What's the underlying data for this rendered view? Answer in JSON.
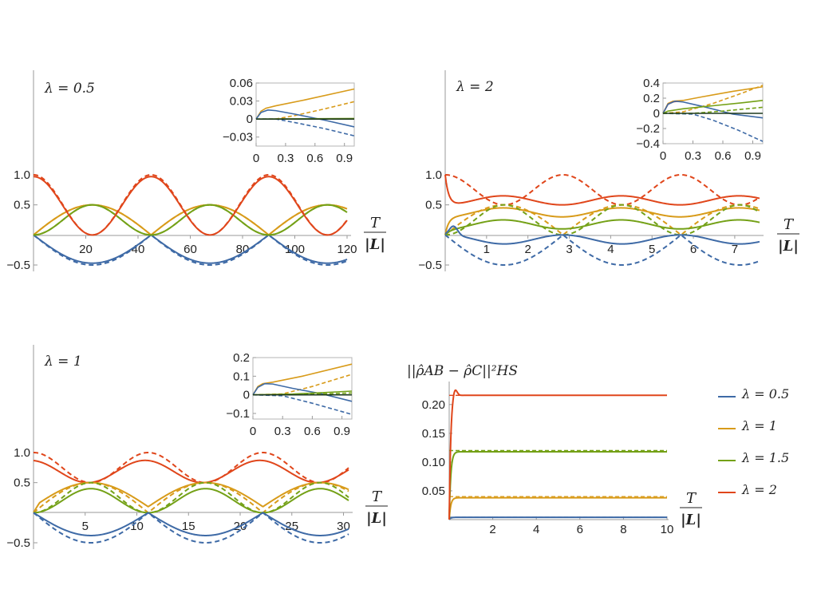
{
  "colors": {
    "blue": "#3e6aa6",
    "yellow": "#d89b1a",
    "green": "#74a117",
    "red": "#e0461b",
    "axis": "#9a9a9a",
    "inset_zero_line": "#1f3a1f"
  },
  "legend": {
    "items": [
      {
        "label": "λ = 0.5",
        "color": "#3e6aa6"
      },
      {
        "label": "λ = 1",
        "color": "#d89b1a"
      },
      {
        "label": "λ = 1.5",
        "color": "#74a117"
      },
      {
        "label": "λ = 2",
        "color": "#e0461b"
      }
    ]
  },
  "x_axis_label": {
    "numerator": "T",
    "denominator": "|L|"
  },
  "chart_data": [
    {
      "type": "line",
      "title": "λ = 0.5",
      "xlim": [
        0,
        120
      ],
      "ylim": [
        -0.5,
        1.0
      ],
      "x_ticks": [
        20,
        40,
        60,
        80,
        100,
        120
      ],
      "y_ticks": [
        -0.5,
        0.5,
        1.0
      ],
      "y_tick_labels": [
        "−0.5",
        "0.5",
        "1.0"
      ],
      "x_label": "T/|L|",
      "series": [
        {
          "color": "blue",
          "style": "solid",
          "shape": "neg_hump",
          "period": 45,
          "amplitude": 0.47
        },
        {
          "color": "blue",
          "style": "dashed",
          "shape": "neg_hump",
          "period": 45,
          "amplitude": 0.5
        },
        {
          "color": "yellow",
          "style": "solid",
          "shape": "triangle_abs_sin",
          "period": 45,
          "amplitude": 0.5
        },
        {
          "color": "yellow",
          "style": "dashed",
          "shape": "triangle_abs_sin",
          "period": 45,
          "amplitude": 0.5
        },
        {
          "color": "green",
          "style": "solid",
          "shape": "sin_squared_half",
          "period": 45,
          "amplitude": 0.5
        },
        {
          "color": "green",
          "style": "dashed",
          "shape": "sin_squared_half",
          "period": 45,
          "amplitude": 0.5
        },
        {
          "color": "red",
          "style": "solid",
          "shape": "cos_squared",
          "period": 45,
          "max": 0.97,
          "min": 0.0
        },
        {
          "color": "red",
          "style": "dashed",
          "shape": "cos_squared",
          "period": 45,
          "max": 1.0,
          "min": 0.0
        }
      ],
      "inset": {
        "xlim": [
          0,
          1.0
        ],
        "ylim": [
          -0.045,
          0.06
        ],
        "x_ticks": [
          0,
          0.3,
          0.6,
          0.9
        ],
        "x_tick_labels": [
          "0",
          "0.3",
          "0.6",
          "0.9"
        ],
        "y_ticks": [
          -0.03,
          0,
          0.03,
          0.06
        ],
        "y_tick_labels": [
          "−0.03",
          "0",
          "0.03",
          "0.06"
        ],
        "series": [
          {
            "color": "yellow",
            "style": "solid",
            "points": [
              [
                0,
                0
              ],
              [
                0.05,
                0.013
              ],
              [
                0.1,
                0.018
              ],
              [
                0.2,
                0.022
              ],
              [
                0.5,
                0.032
              ],
              [
                1.0,
                0.05
              ]
            ]
          },
          {
            "color": "yellow",
            "style": "dashed",
            "points": [
              [
                0,
                0
              ],
              [
                0.2,
                0.0
              ],
              [
                0.4,
                0.006
              ],
              [
                0.7,
                0.017
              ],
              [
                1.0,
                0.029
              ]
            ]
          },
          {
            "color": "blue",
            "style": "solid",
            "points": [
              [
                0,
                0
              ],
              [
                0.05,
                0.011
              ],
              [
                0.12,
                0.015
              ],
              [
                0.2,
                0.014
              ],
              [
                0.4,
                0.008
              ],
              [
                0.7,
                -0.002
              ],
              [
                1.0,
                -0.013
              ]
            ]
          },
          {
            "color": "blue",
            "style": "dashed",
            "points": [
              [
                0,
                0
              ],
              [
                0.2,
                0.0
              ],
              [
                0.4,
                -0.006
              ],
              [
                0.7,
                -0.016
              ],
              [
                1.0,
                -0.028
              ]
            ]
          },
          {
            "color": "green",
            "style": "solid",
            "points": [
              [
                0,
                0
              ],
              [
                1.0,
                0.001
              ]
            ]
          },
          {
            "color": "inset_zero_line",
            "style": "solid",
            "points": [
              [
                0,
                0
              ],
              [
                1.0,
                0
              ]
            ]
          }
        ]
      }
    },
    {
      "type": "line",
      "title": "λ = 2",
      "xlim": [
        0,
        7.6
      ],
      "ylim": [
        -0.5,
        1.0
      ],
      "x_ticks": [
        1,
        2,
        3,
        4,
        5,
        6,
        7
      ],
      "y_ticks": [
        -0.5,
        0.5,
        1.0
      ],
      "y_tick_labels": [
        "−0.5",
        "0.5",
        "1.0"
      ],
      "x_label": "T/|L|",
      "series": [
        {
          "color": "red",
          "style": "solid",
          "points_desc": "drops from 1.0 to ~0.6 then oscillates between 0.5 and 0.65 (period ~2.85)"
        },
        {
          "color": "red",
          "style": "dashed",
          "shape": "cos_squared",
          "period": 2.85,
          "max": 1.0,
          "min": 0.5
        },
        {
          "color": "yellow",
          "style": "solid",
          "points_desc": "rises to ~0.45 and oscillates between 0.3 and 0.45"
        },
        {
          "color": "yellow",
          "style": "dashed",
          "shape": "triangle_abs_sin",
          "period": 2.85,
          "amplitude": 0.5
        },
        {
          "color": "green",
          "style": "solid",
          "points_desc": "oscillates between 0.1 and 0.25"
        },
        {
          "color": "green",
          "style": "dashed",
          "shape": "sin_squared_half",
          "period": 2.85,
          "amplitude": 0.5
        },
        {
          "color": "blue",
          "style": "solid",
          "points_desc": "oscillates between 0 and -0.15"
        },
        {
          "color": "blue",
          "style": "dashed",
          "shape": "neg_hump",
          "period": 2.85,
          "amplitude": 0.5
        }
      ],
      "inset": {
        "xlim": [
          0,
          1.0
        ],
        "ylim": [
          -0.4,
          0.4
        ],
        "x_ticks": [
          0,
          0.3,
          0.6,
          0.9
        ],
        "x_tick_labels": [
          "0",
          "0.3",
          "0.6",
          "0.9"
        ],
        "y_ticks": [
          -0.4,
          -0.2,
          0,
          0.2,
          0.4
        ],
        "y_tick_labels": [
          "−0.4",
          "−0.2",
          "0",
          "0.2",
          "0.4"
        ],
        "series": [
          {
            "color": "yellow",
            "style": "solid",
            "points": [
              [
                0,
                0
              ],
              [
                0.05,
                0.13
              ],
              [
                0.1,
                0.16
              ],
              [
                0.2,
                0.17
              ],
              [
                0.4,
                0.22
              ],
              [
                0.7,
                0.29
              ],
              [
                1.0,
                0.35
              ]
            ]
          },
          {
            "color": "yellow",
            "style": "dashed",
            "points": [
              [
                0,
                0
              ],
              [
                0.2,
                0.02
              ],
              [
                0.5,
                0.13
              ],
              [
                0.8,
                0.27
              ],
              [
                1.0,
                0.37
              ]
            ]
          },
          {
            "color": "red",
            "style": "solid",
            "points": [
              [
                0,
                0
              ],
              [
                0.05,
                0.12
              ],
              [
                0.1,
                0.15
              ],
              [
                0.15,
                0.16
              ]
            ]
          },
          {
            "color": "blue",
            "style": "solid",
            "points": [
              [
                0,
                0
              ],
              [
                0.05,
                0.12
              ],
              [
                0.12,
                0.16
              ],
              [
                0.2,
                0.15
              ],
              [
                0.4,
                0.09
              ],
              [
                0.7,
                -0.01
              ],
              [
                1.0,
                -0.06
              ]
            ]
          },
          {
            "color": "blue",
            "style": "dashed",
            "points": [
              [
                0,
                0
              ],
              [
                0.3,
                -0.01
              ],
              [
                0.5,
                -0.09
              ],
              [
                0.75,
                -0.22
              ],
              [
                1.0,
                -0.37
              ]
            ]
          },
          {
            "color": "green",
            "style": "solid",
            "points": [
              [
                0,
                0
              ],
              [
                0.05,
                0.03
              ],
              [
                0.2,
                0.06
              ],
              [
                0.5,
                0.1
              ],
              [
                0.8,
                0.14
              ],
              [
                1.0,
                0.17
              ]
            ]
          },
          {
            "color": "green",
            "style": "dashed",
            "points": [
              [
                0,
                0
              ],
              [
                0.3,
                0.0
              ],
              [
                0.6,
                0.03
              ],
              [
                1.0,
                0.08
              ]
            ]
          },
          {
            "color": "inset_zero_line",
            "style": "solid",
            "points": [
              [
                0,
                0
              ],
              [
                1.0,
                0
              ]
            ]
          }
        ]
      }
    },
    {
      "type": "line",
      "title": "λ = 1",
      "xlim": [
        0,
        30.5
      ],
      "ylim": [
        -0.5,
        1.0
      ],
      "x_ticks": [
        5,
        10,
        15,
        20,
        25,
        30
      ],
      "y_ticks": [
        -0.5,
        0.5,
        1.0
      ],
      "y_tick_labels": [
        "−0.5",
        "0.5",
        "1.0"
      ],
      "x_label": "T/|L|",
      "series": [
        {
          "color": "red",
          "style": "solid",
          "points_desc": "oscillates between ~0.87 and ~0.5"
        },
        {
          "color": "red",
          "style": "dashed",
          "shape": "cos_squared",
          "period": 11.1,
          "max": 1.0,
          "min": 0.5
        },
        {
          "color": "yellow",
          "style": "solid",
          "points_desc": "oscillates between 0.5 and 0.1"
        },
        {
          "color": "yellow",
          "style": "dashed",
          "shape": "triangle_abs_sin",
          "period": 11.1,
          "amplitude": 0.5
        },
        {
          "color": "green",
          "style": "solid",
          "points_desc": "oscillates between 0 and 0.4"
        },
        {
          "color": "green",
          "style": "dashed",
          "shape": "sin_squared_half",
          "period": 11.1,
          "amplitude": 0.5
        },
        {
          "color": "blue",
          "style": "solid",
          "shape": "neg_hump",
          "period": 11.1,
          "amplitude": 0.38
        },
        {
          "color": "blue",
          "style": "dashed",
          "shape": "neg_hump",
          "period": 11.1,
          "amplitude": 0.5
        }
      ],
      "inset": {
        "xlim": [
          0,
          1.0
        ],
        "ylim": [
          -0.13,
          0.2
        ],
        "x_ticks": [
          0,
          0.3,
          0.6,
          0.9
        ],
        "x_tick_labels": [
          "0",
          "0.3",
          "0.6",
          "0.9"
        ],
        "y_ticks": [
          -0.1,
          0,
          0.1,
          0.2
        ],
        "y_tick_labels": [
          "−0.1",
          "0",
          "0.1",
          "0.2"
        ],
        "series": [
          {
            "color": "yellow",
            "style": "solid",
            "points": [
              [
                0,
                0
              ],
              [
                0.05,
                0.045
              ],
              [
                0.1,
                0.06
              ],
              [
                0.2,
                0.068
              ],
              [
                0.5,
                0.1
              ],
              [
                1.0,
                0.165
              ]
            ]
          },
          {
            "color": "yellow",
            "style": "dashed",
            "points": [
              [
                0,
                0
              ],
              [
                0.3,
                0.005
              ],
              [
                0.6,
                0.045
              ],
              [
                1.0,
                0.11
              ]
            ]
          },
          {
            "color": "blue",
            "style": "solid",
            "points": [
              [
                0,
                0
              ],
              [
                0.05,
                0.04
              ],
              [
                0.12,
                0.06
              ],
              [
                0.2,
                0.058
              ],
              [
                0.4,
                0.035
              ],
              [
                0.7,
                0.005
              ],
              [
                1.0,
                -0.035
              ]
            ]
          },
          {
            "color": "blue",
            "style": "dashed",
            "points": [
              [
                0,
                0
              ],
              [
                0.3,
                -0.005
              ],
              [
                0.6,
                -0.045
              ],
              [
                1.0,
                -0.105
              ]
            ]
          },
          {
            "color": "green",
            "style": "solid",
            "points": [
              [
                0,
                0
              ],
              [
                0.4,
                0.004
              ],
              [
                0.7,
                0.012
              ],
              [
                1.0,
                0.02
              ]
            ]
          },
          {
            "color": "green",
            "style": "dashed",
            "points": [
              [
                0,
                0
              ],
              [
                0.5,
                0.002
              ],
              [
                1.0,
                0.01
              ]
            ]
          },
          {
            "color": "inset_zero_line",
            "style": "solid",
            "points": [
              [
                0,
                0
              ],
              [
                1.0,
                0
              ]
            ]
          }
        ]
      }
    },
    {
      "type": "line",
      "title": "||ρ̂AB − ρ̂C||²HS",
      "xlim": [
        0,
        10
      ],
      "ylim": [
        0,
        0.24
      ],
      "x_ticks": [
        2,
        4,
        6,
        8,
        10
      ],
      "y_ticks": [
        0.05,
        0.1,
        0.15,
        0.2
      ],
      "y_tick_labels": [
        "0.05",
        "0.10",
        "0.15",
        "0.20"
      ],
      "x_label": "T/|L|",
      "series": [
        {
          "name": "λ = 0.5",
          "color": "blue",
          "style": "solid",
          "plateau": 0.004
        },
        {
          "name": "λ = 0.5",
          "color": "blue",
          "style": "dashed",
          "plateau": 0.004
        },
        {
          "name": "λ = 1",
          "color": "yellow",
          "style": "solid",
          "plateau": 0.038
        },
        {
          "name": "λ = 1",
          "color": "yellow",
          "style": "dashed",
          "plateau": 0.04
        },
        {
          "name": "λ = 1.5",
          "color": "green",
          "style": "solid",
          "plateau": 0.118
        },
        {
          "name": "λ = 1.5",
          "color": "green",
          "style": "dashed",
          "plateau": 0.12
        },
        {
          "name": "λ = 2",
          "color": "red",
          "style": "solid",
          "plateau": 0.216,
          "overshoot": 0.23
        },
        {
          "name": "λ = 2",
          "color": "red",
          "style": "dashed",
          "plateau": 0.216
        }
      ]
    }
  ]
}
